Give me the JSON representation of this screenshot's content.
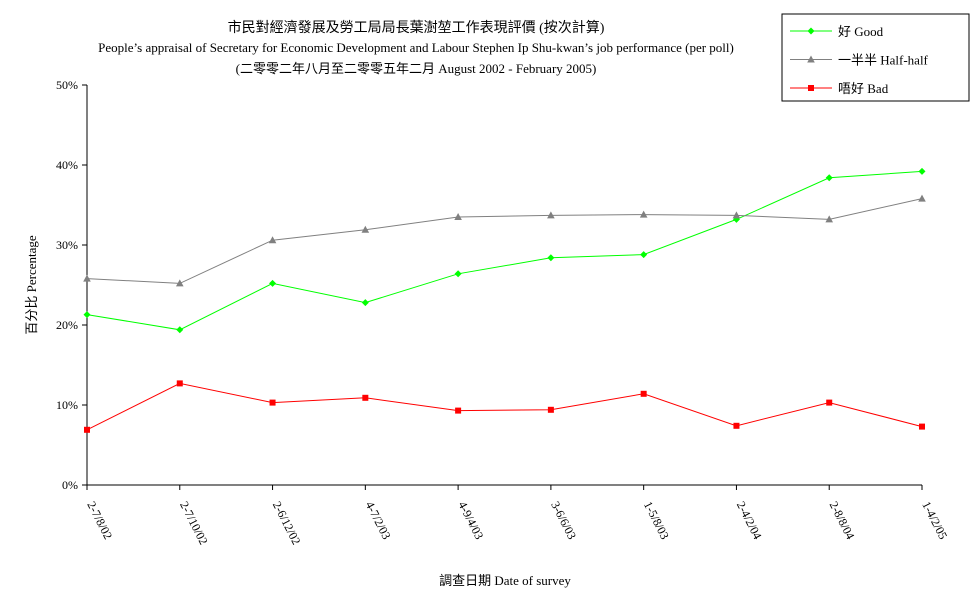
{
  "chart_data": {
    "type": "line",
    "title": "市民對經濟發展及勞工局局長葉澍堃工作表現評價 (按次計算)",
    "subtitle": "People’s appraisal of Secretary for Economic Development and Labour Stephen Ip Shu-kwan’s job performance (per poll)",
    "subtitle2": "(二零零二年八月至二零零五年二月 August 2002 - February 2005)",
    "xlabel": "調查日期 Date of survey",
    "ylabel": "百分比 Percentage",
    "ylim": [
      0,
      50
    ],
    "yticks": [
      "0%",
      "10%",
      "20%",
      "30%",
      "40%",
      "50%"
    ],
    "categories": [
      "2-7/8/02",
      "2-7/10/02",
      "2-6/12/02",
      "4-7/2/03",
      "4-9/4/03",
      "3-6/6/03",
      "1-5/8/03",
      "2-4/2/04",
      "2-8/8/04",
      "1-4/2/05"
    ],
    "grid": false,
    "legend_position": "top-right",
    "series": [
      {
        "name": "好 Good",
        "color": "#00ff00",
        "marker": "diamond",
        "values": [
          21.3,
          19.4,
          25.2,
          22.8,
          26.4,
          28.4,
          28.8,
          33.2,
          38.4,
          39.2
        ]
      },
      {
        "name": "一半半 Half-half",
        "color": "#808080",
        "marker": "triangle",
        "values": [
          25.8,
          25.2,
          30.6,
          31.9,
          33.5,
          33.7,
          33.8,
          33.7,
          33.2,
          35.8
        ]
      },
      {
        "name": "唔好 Bad",
        "color": "#ff0000",
        "marker": "square",
        "values": [
          6.9,
          12.7,
          10.3,
          10.9,
          9.3,
          9.4,
          11.4,
          7.4,
          10.3,
          7.3
        ]
      }
    ]
  }
}
